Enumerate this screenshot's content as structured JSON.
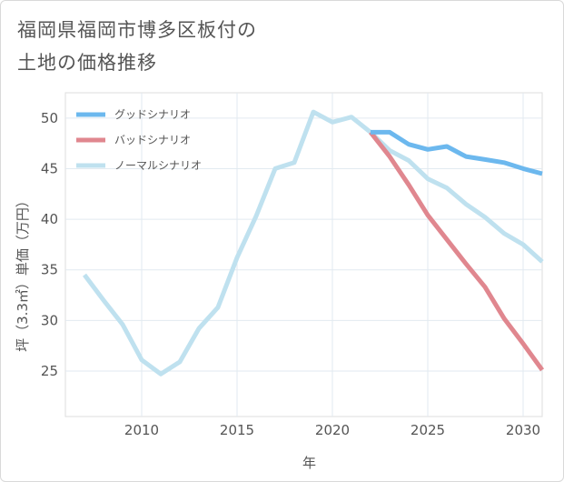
{
  "page": {
    "title_line1": "福岡県福岡市博多区板付の",
    "title_line2": "土地の価格推移"
  },
  "chart_data": {
    "type": "line",
    "xlabel": "年",
    "ylabel": "坪（3.3㎡）単価（万円）",
    "xlim": [
      2006,
      2031
    ],
    "ylim": [
      20.5,
      52.5
    ],
    "x_ticks": [
      2010,
      2015,
      2020,
      2025,
      2030
    ],
    "y_ticks": [
      25,
      30,
      35,
      40,
      45,
      50
    ],
    "grid": true,
    "legend_position": "top-left",
    "series": [
      {
        "name": "グッドシナリオ",
        "color": "#6cb8ee",
        "x": [
          2022,
          2023,
          2024,
          2025,
          2026,
          2027,
          2028,
          2029,
          2030,
          2031
        ],
        "y": [
          48.6,
          48.6,
          47.4,
          46.9,
          47.2,
          46.2,
          45.9,
          45.6,
          45.0,
          44.5
        ]
      },
      {
        "name": "バッドシナリオ",
        "color": "#e0878f",
        "x": [
          2022,
          2023,
          2024,
          2025,
          2026,
          2027,
          2028,
          2029,
          2030,
          2031
        ],
        "y": [
          48.6,
          46.2,
          43.4,
          40.4,
          38.0,
          35.6,
          33.3,
          30.2,
          27.7,
          25.1
        ]
      },
      {
        "name": "ノーマルシナリオ",
        "color": "#bfe1ef",
        "x": [
          2007,
          2008,
          2009,
          2010,
          2011,
          2012,
          2013,
          2014,
          2015,
          2016,
          2017,
          2018,
          2019,
          2020,
          2021,
          2022,
          2023,
          2024,
          2025,
          2026,
          2027,
          2028,
          2029,
          2030,
          2031
        ],
        "y": [
          34.5,
          32.0,
          29.6,
          26.1,
          24.7,
          25.9,
          29.2,
          31.3,
          36.2,
          40.3,
          45.0,
          45.6,
          50.6,
          49.6,
          50.1,
          48.6,
          46.8,
          45.8,
          44.0,
          43.1,
          41.5,
          40.2,
          38.6,
          37.5,
          35.8
        ]
      }
    ]
  }
}
